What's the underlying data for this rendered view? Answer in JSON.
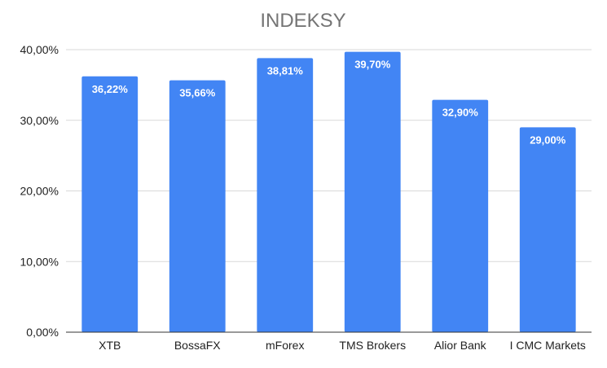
{
  "chart_data": {
    "type": "bar",
    "title": "INDEKSY",
    "xlabel": "",
    "ylabel": "",
    "categories": [
      "XTB",
      "BossaFX",
      "mForex",
      "TMS Brokers",
      "Alior Bank",
      "I CMC Markets"
    ],
    "values": [
      36.22,
      35.66,
      38.81,
      39.7,
      32.9,
      29.0
    ],
    "data_labels": [
      "36,22%",
      "35,66%",
      "38,81%",
      "39,70%",
      "32,90%",
      "29,00%"
    ],
    "ylim": [
      0,
      40
    ],
    "yticks": [
      0,
      10,
      20,
      30,
      40
    ],
    "ytick_labels": [
      "0,00%",
      "10,00%",
      "20,00%",
      "30,00%",
      "40,00%"
    ],
    "grid": true,
    "legend": "none",
    "bar_color": "#4285f4"
  }
}
